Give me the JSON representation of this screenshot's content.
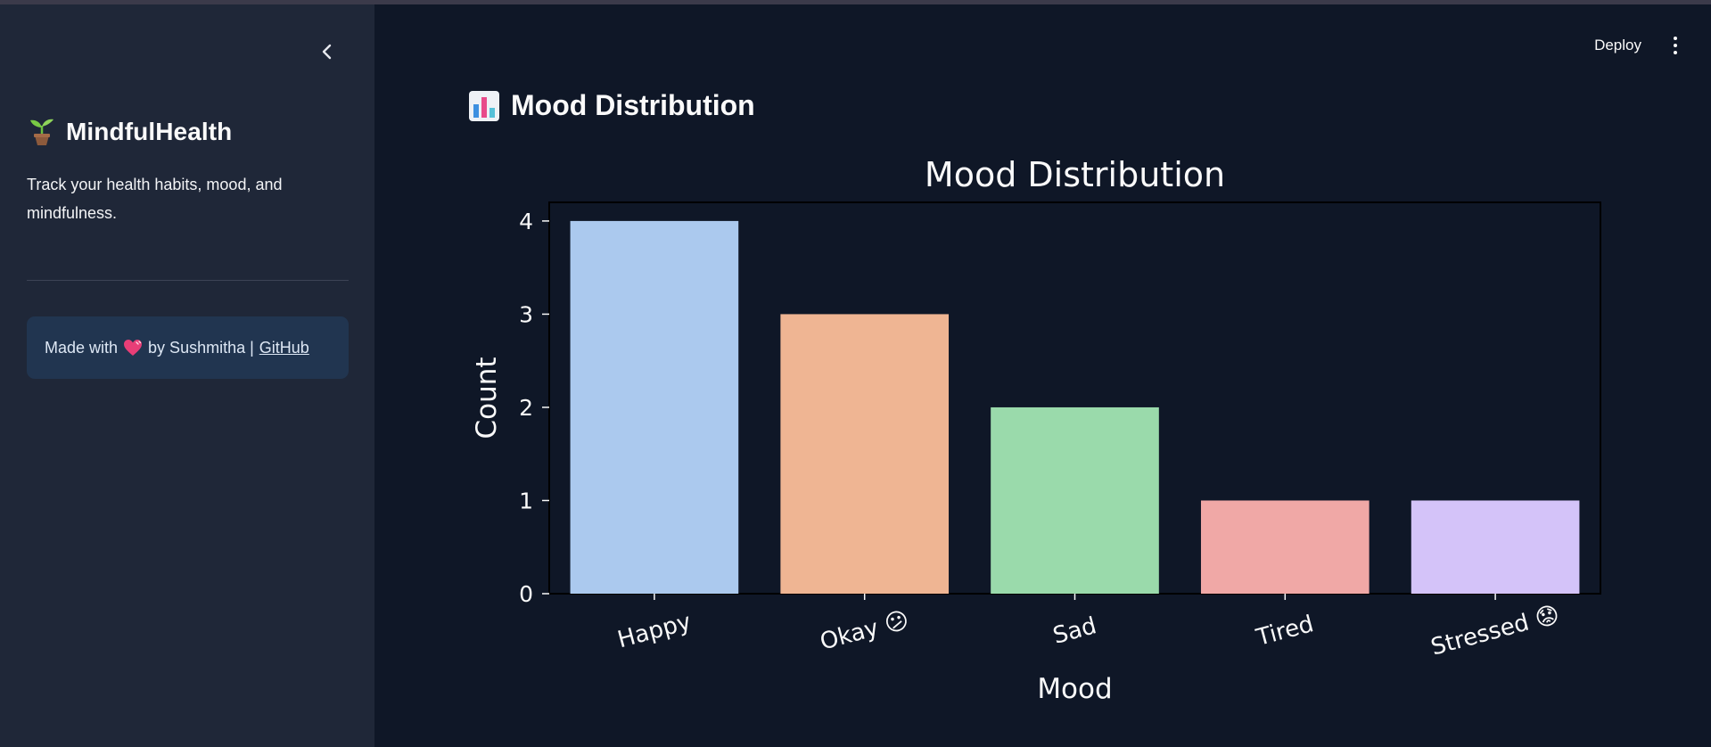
{
  "app": {
    "brand_icon": "seedling-icon",
    "brand_title": "MindfulHealth",
    "brand_description": "Track your health habits, mood, and mindfulness.",
    "credit_prefix": "Made with",
    "credit_heart_icon": "heart-icon",
    "credit_by": "by Sushmitha |",
    "credit_link": "GitHub"
  },
  "header": {
    "deploy_label": "Deploy",
    "menu_icon": "more-vertical-icon"
  },
  "page": {
    "heading_icon": "bar-chart-icon",
    "heading": "Mood Distribution"
  },
  "chart_data": {
    "type": "bar",
    "title": "Mood Distribution",
    "xlabel": "Mood",
    "ylabel": "Count",
    "categories": [
      "Happy",
      "Okay 😕",
      "Sad",
      "Tired",
      "Stressed 😟"
    ],
    "values": [
      4,
      3,
      2,
      1,
      1
    ],
    "colors": [
      "#abc9ee",
      "#efb593",
      "#9adaab",
      "#f0a8a6",
      "#d4c3f9"
    ],
    "ylim": [
      0,
      4.2
    ],
    "yticks": [
      0,
      1,
      2,
      3,
      4
    ],
    "grid": false,
    "legend": "none"
  },
  "colors": {
    "background": "#0f1727",
    "sidebar": "#1f2738",
    "credit_box": "#213550",
    "text": "#fafafa"
  }
}
